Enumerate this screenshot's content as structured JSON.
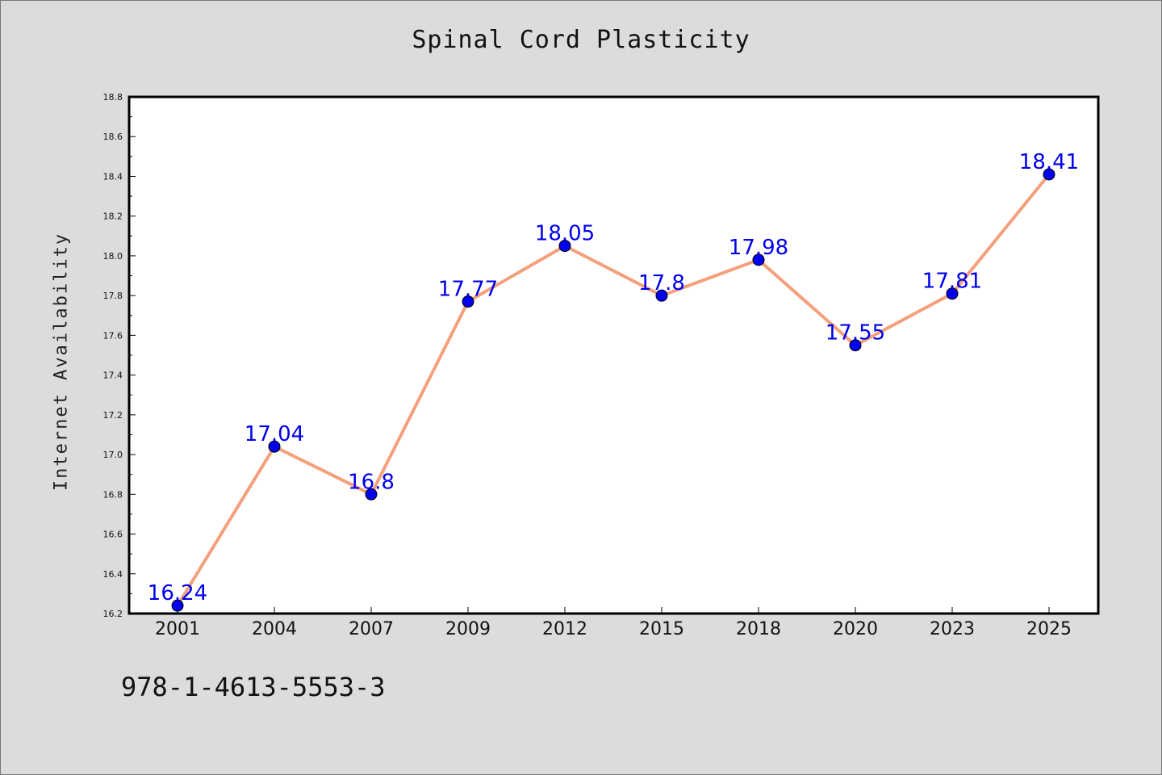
{
  "chart_data": {
    "type": "line",
    "title": "Spinal Cord Plasticity",
    "xlabel": "",
    "ylabel": "Internet Availability",
    "categories": [
      "2001",
      "2004",
      "2007",
      "2009",
      "2012",
      "2015",
      "2018",
      "2020",
      "2023",
      "2025"
    ],
    "series": [
      {
        "values": [
          16.24,
          17.04,
          16.8,
          17.77,
          18.05,
          17.8,
          17.98,
          17.55,
          17.81,
          18.41
        ],
        "labels": [
          "16.24",
          "17.04",
          "16.8",
          "17.77",
          "18.05",
          "17.8",
          "17.98",
          "17.55",
          "17.81",
          "18.41"
        ],
        "line_color": "#f4a07c",
        "marker_color": "#0000ee"
      }
    ],
    "ylim": [
      16.2,
      18.8
    ],
    "yticks": [
      "16.2",
      "16.4",
      "16.6",
      "16.8",
      "17.0",
      "17.2",
      "17.4",
      "17.6",
      "17.8",
      "18.0",
      "18.2",
      "18.4",
      "18.6",
      "18.8"
    ],
    "grid": false,
    "legend": "none",
    "label_color": "#0000ee"
  },
  "footer": {
    "isbn": "978-1-4613-5553-3"
  }
}
